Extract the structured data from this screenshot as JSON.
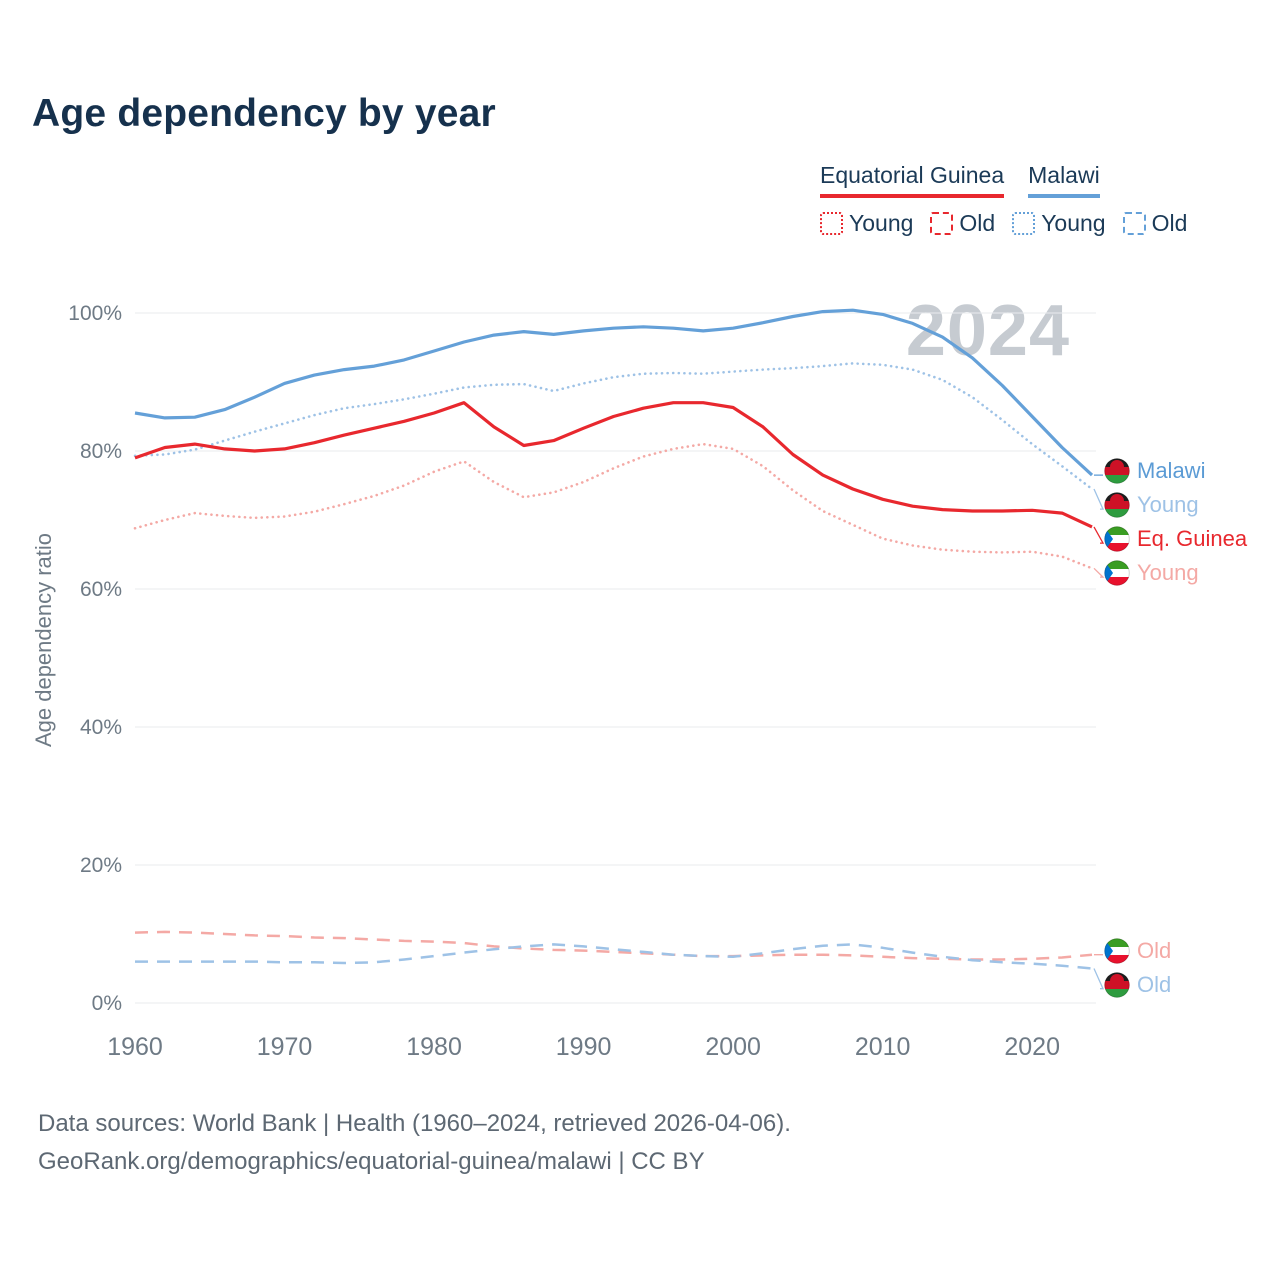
{
  "title": "Age dependency by year",
  "watermark": "2024",
  "ylabel": "Age dependency ratio",
  "legend": {
    "groups": [
      {
        "label": "Equatorial Guinea",
        "color": "#e8282e"
      },
      {
        "label": "Malawi",
        "color": "#64a0d8"
      }
    ],
    "items": [
      {
        "label": "Young",
        "style": "dotted",
        "color": "#e8282e"
      },
      {
        "label": "Old",
        "style": "dashed",
        "color": "#e8282e"
      },
      {
        "label": "Young",
        "style": "dotted",
        "color": "#64a0d8"
      },
      {
        "label": "Old",
        "style": "dashed",
        "color": "#64a0d8"
      }
    ]
  },
  "footer": {
    "line1": "Data sources: World Bank | Health (1960–2024, retrieved 2026-04-06).",
    "line2": "GeoRank.org/demographics/equatorial-guinea/malawi | CC BY"
  },
  "chart_data": {
    "type": "line",
    "title": "Age dependency by year",
    "xlabel": "",
    "ylabel": "Age dependency ratio",
    "ylim": [
      0,
      100
    ],
    "grid": "horizontal",
    "x": [
      1960,
      1962,
      1964,
      1966,
      1968,
      1970,
      1972,
      1974,
      1976,
      1978,
      1980,
      1982,
      1984,
      1986,
      1988,
      1990,
      1992,
      1994,
      1996,
      1998,
      2000,
      2002,
      2004,
      2006,
      2008,
      2010,
      2012,
      2014,
      2016,
      2018,
      2020,
      2022,
      2024
    ],
    "xticks": [
      1960,
      1970,
      1980,
      1990,
      2000,
      2010,
      2020
    ],
    "yticks": [
      0,
      20,
      40,
      60,
      80,
      100
    ],
    "series": [
      {
        "id": "mw-total",
        "name": "Malawi",
        "country": "Malawi",
        "color": "#64a0d8",
        "style": "solid",
        "width": 3.2,
        "values": [
          85.5,
          84.8,
          84.9,
          86.0,
          87.8,
          89.8,
          91.0,
          91.8,
          92.3,
          93.2,
          94.5,
          95.8,
          96.8,
          97.3,
          96.9,
          97.4,
          97.8,
          98.0,
          97.8,
          97.4,
          97.8,
          98.6,
          99.5,
          100.2,
          100.4,
          99.8,
          98.5,
          96.5,
          93.5,
          89.5,
          85.0,
          80.5,
          76.5
        ]
      },
      {
        "id": "mw-young",
        "name": "Young",
        "country": "Malawi",
        "color": "#9ec2e6",
        "style": "dotted",
        "width": 2.6,
        "values": [
          79.3,
          79.5,
          80.2,
          81.5,
          82.8,
          84.0,
          85.2,
          86.2,
          86.8,
          87.5,
          88.3,
          89.2,
          89.6,
          89.7,
          88.7,
          89.8,
          90.7,
          91.2,
          91.3,
          91.2,
          91.5,
          91.8,
          92.0,
          92.3,
          92.7,
          92.5,
          91.8,
          90.3,
          87.8,
          84.5,
          81.0,
          77.8,
          74.5
        ]
      },
      {
        "id": "gq-total",
        "name": "Eq. Guinea",
        "country": "Equatorial Guinea",
        "color": "#e8282e",
        "style": "solid",
        "width": 3.2,
        "values": [
          79.0,
          80.5,
          81.0,
          80.3,
          80.0,
          80.3,
          81.2,
          82.3,
          83.3,
          84.3,
          85.5,
          87.0,
          83.5,
          80.8,
          81.5,
          83.3,
          85.0,
          86.2,
          87.0,
          87.0,
          86.3,
          83.5,
          79.5,
          76.5,
          74.5,
          73.0,
          72.0,
          71.5,
          71.3,
          71.3,
          71.4,
          71.0,
          69.0
        ]
      },
      {
        "id": "gq-young",
        "name": "Young",
        "country": "Equatorial Guinea",
        "color": "#f4a9a5",
        "style": "dotted",
        "width": 2.6,
        "values": [
          68.8,
          70.0,
          71.0,
          70.6,
          70.3,
          70.5,
          71.2,
          72.3,
          73.5,
          75.0,
          77.0,
          78.5,
          75.5,
          73.3,
          74.0,
          75.5,
          77.5,
          79.2,
          80.3,
          81.0,
          80.3,
          77.8,
          74.3,
          71.3,
          69.3,
          67.3,
          66.3,
          65.7,
          65.4,
          65.3,
          65.4,
          64.7,
          63.0
        ]
      },
      {
        "id": "gq-old",
        "name": "Old",
        "country": "Equatorial Guinea",
        "color": "#f4a9a5",
        "style": "dashed",
        "width": 2.5,
        "values": [
          10.2,
          10.3,
          10.2,
          10.0,
          9.8,
          9.7,
          9.5,
          9.4,
          9.2,
          9.0,
          8.9,
          8.7,
          8.2,
          7.9,
          7.7,
          7.6,
          7.4,
          7.2,
          7.0,
          6.8,
          6.8,
          6.9,
          7.0,
          7.0,
          6.9,
          6.7,
          6.5,
          6.4,
          6.3,
          6.3,
          6.4,
          6.6,
          7.0
        ]
      },
      {
        "id": "mw-old",
        "name": "Old",
        "country": "Malawi",
        "color": "#9ec2e6",
        "style": "dashed",
        "width": 2.5,
        "values": [
          6.0,
          6.0,
          6.0,
          6.0,
          6.0,
          5.9,
          5.9,
          5.8,
          5.9,
          6.3,
          6.8,
          7.3,
          7.8,
          8.2,
          8.5,
          8.2,
          7.8,
          7.4,
          7.0,
          6.8,
          6.7,
          7.2,
          7.8,
          8.3,
          8.5,
          8.0,
          7.3,
          6.7,
          6.2,
          5.9,
          5.7,
          5.4,
          5.0
        ]
      }
    ],
    "end_labels": [
      {
        "text": "Malawi",
        "series": "mw-total",
        "flag": "mw",
        "color": "#5b9bd5",
        "value": 76.5
      },
      {
        "text": "Young",
        "series": "mw-young",
        "flag": "mw",
        "color": "#9ec2e6",
        "value": 74.5
      },
      {
        "text": "Eq. Guinea",
        "series": "gq-total",
        "flag": "gq",
        "color": "#e8282e",
        "value": 69.0
      },
      {
        "text": "Young",
        "series": "gq-young",
        "flag": "gq",
        "color": "#f4a9a5",
        "value": 63.0
      },
      {
        "text": "Old",
        "series": "gq-old",
        "flag": "gq",
        "color": "#f4a9a5",
        "value": 7.0
      },
      {
        "text": "Old",
        "series": "mw-old",
        "flag": "mw",
        "color": "#9ec2e6",
        "value": 5.0
      }
    ]
  }
}
